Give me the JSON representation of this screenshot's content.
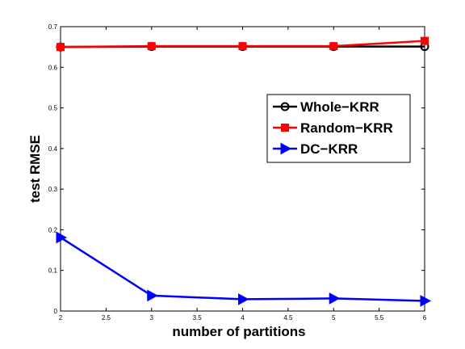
{
  "chart_data": {
    "type": "line",
    "title": "",
    "xlabel": "number of partitions",
    "ylabel": "test RMSE",
    "xlim": [
      2,
      6
    ],
    "ylim": [
      0,
      0.7
    ],
    "xticks": [
      2,
      2.5,
      3,
      3.5,
      4,
      4.5,
      5,
      5.5,
      6
    ],
    "xtick_labels": [
      "2",
      "2.5",
      "3",
      "3.5",
      "4",
      "4.5",
      "5",
      "5.5",
      "6"
    ],
    "yticks": [
      0,
      0.1,
      0.2,
      0.3,
      0.4,
      0.5,
      0.6,
      0.7
    ],
    "ytick_labels": [
      "0",
      "0.1",
      "0.2",
      "0.3",
      "0.4",
      "0.5",
      "0.6",
      "0.7"
    ],
    "grid": false,
    "legend_position": "right",
    "x": [
      2,
      3,
      4,
      5,
      6
    ],
    "series": [
      {
        "name": "Whole−KRR",
        "values": [
          0.65,
          0.651,
          0.651,
          0.651,
          0.651
        ],
        "color": "#000000",
        "marker": "circle"
      },
      {
        "name": "Random−KRR",
        "values": [
          0.65,
          0.652,
          0.652,
          0.652,
          0.665
        ],
        "color": "#ff0000",
        "marker": "square"
      },
      {
        "name": "DC−KRR",
        "values": [
          0.181,
          0.038,
          0.029,
          0.031,
          0.025
        ],
        "color": "#0000ff",
        "marker": "triangle-right"
      }
    ]
  }
}
